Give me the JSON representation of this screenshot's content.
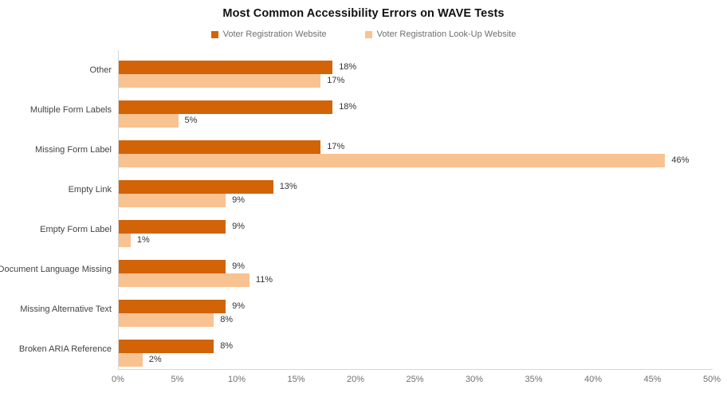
{
  "title": "Most Common Accessibility Errors on WAVE Tests",
  "colors": {
    "series1": "#d26306",
    "series2": "#f9c291",
    "axis_line": "#d6d6d6",
    "title_text": "#111111",
    "label_text": "#434343",
    "tick_text": "#6f6f6f"
  },
  "legend": {
    "items": [
      {
        "label": "Voter Registration Website",
        "color": "#d26306"
      },
      {
        "label": "Voter Registration Look-Up Website",
        "color": "#f9c291"
      }
    ]
  },
  "chart_data": {
    "type": "bar",
    "orientation": "horizontal",
    "title": "Most Common Accessibility Errors on WAVE Tests",
    "categories": [
      "Other",
      "Multiple Form Labels",
      "Missing Form Label",
      "Empty Link",
      "Empty Form Label",
      "Document Language Missing",
      "Missing Alternative Text",
      "Broken ARIA Reference"
    ],
    "series": [
      {
        "name": "Voter Registration Website",
        "color": "#d26306",
        "values": [
          18,
          18,
          17,
          13,
          9,
          9,
          9,
          8
        ]
      },
      {
        "name": "Voter Registration Look-Up Website",
        "color": "#f9c291",
        "values": [
          17,
          5,
          46,
          9,
          1,
          11,
          8,
          2
        ]
      }
    ],
    "value_suffix": "%",
    "data_labels": true,
    "xlabel": "",
    "ylabel": "",
    "xlim": [
      0,
      50
    ],
    "x_ticks": [
      "0%",
      "5%",
      "10%",
      "15%",
      "20%",
      "25%",
      "30%",
      "35%",
      "40%",
      "45%",
      "50%"
    ],
    "grid": false,
    "legend_position": "top"
  }
}
